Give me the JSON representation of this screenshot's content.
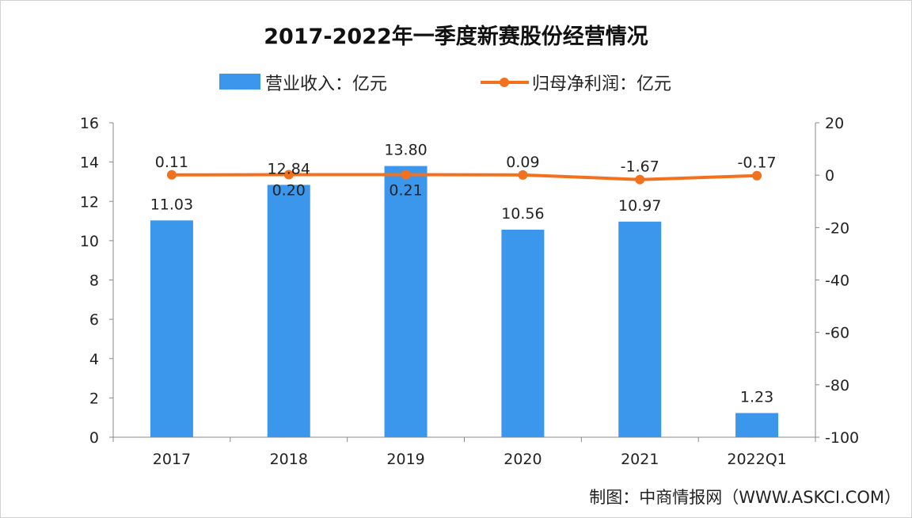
{
  "chart_data": {
    "type": "bar+line",
    "title": "2017-2022年一季度新赛股份经营情况",
    "categories": [
      "2017",
      "2018",
      "2019",
      "2020",
      "2021",
      "2022Q1"
    ],
    "series": [
      {
        "name": "营业收入：亿元",
        "type": "bar",
        "axis": "left",
        "values": [
          11.03,
          12.84,
          13.8,
          10.56,
          10.97,
          1.23
        ],
        "labels": [
          "11.03",
          "12.84",
          "13.80",
          "10.56",
          "10.97",
          "1.23"
        ]
      },
      {
        "name": "归母净利润：亿元",
        "type": "line",
        "axis": "right",
        "values": [
          0.11,
          0.2,
          0.21,
          0.09,
          -1.67,
          -0.17
        ],
        "labels": [
          "0.11",
          "0.20",
          "0.21",
          "0.09",
          "-1.67",
          "-0.17"
        ]
      }
    ],
    "left_axis": {
      "ylim": [
        0,
        16
      ],
      "ticks": [
        "0",
        "2",
        "4",
        "6",
        "8",
        "10",
        "12",
        "14",
        "16"
      ]
    },
    "right_axis": {
      "ylim": [
        -100,
        20
      ],
      "ticks": [
        "-100",
        "-80",
        "-60",
        "-40",
        "-20",
        "0",
        "20"
      ]
    },
    "legend_placement": "top",
    "grid": false,
    "colors": {
      "bar": "#3a97ec",
      "line": "#f2711c"
    }
  },
  "source": "制图：中商情报网（WWW.ASKCI.COM）"
}
